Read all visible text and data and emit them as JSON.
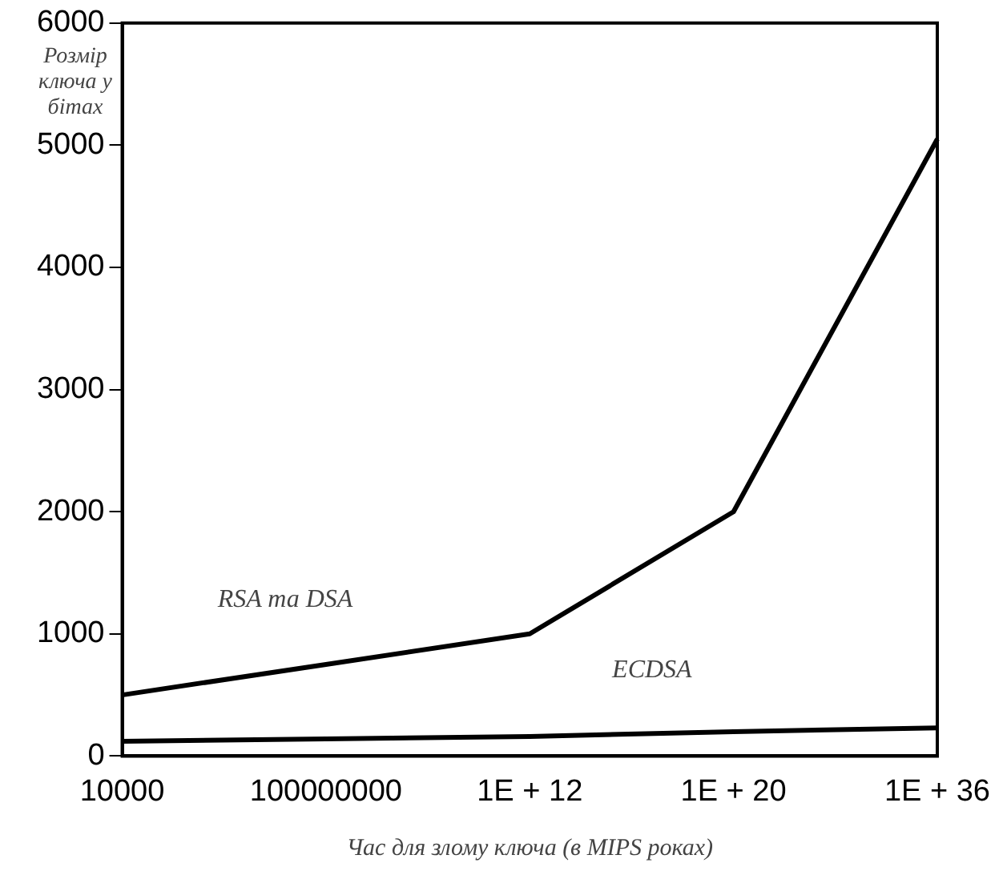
{
  "chart_data": {
    "type": "line",
    "xlabel": "Час для злому ключа (в MIPS роках)",
    "ylabel": "Розмір ключа у бітах",
    "categories": [
      "10000",
      "100000000",
      "1E + 12",
      "1E + 20",
      "1E + 36"
    ],
    "series": [
      {
        "name": "RSA та DSA",
        "color": "#000000",
        "values": [
          500,
          750,
          1000,
          2000,
          5050
        ]
      },
      {
        "name": "ECDSA",
        "color": "#000000",
        "values": [
          120,
          140,
          160,
          200,
          230
        ]
      }
    ],
    "ylim": [
      0,
      6000
    ],
    "yticks": [
      0,
      1000,
      2000,
      3000,
      4000,
      5000,
      6000
    ],
    "grid": false,
    "legend": false,
    "marker": "none",
    "line_style": "solid"
  }
}
